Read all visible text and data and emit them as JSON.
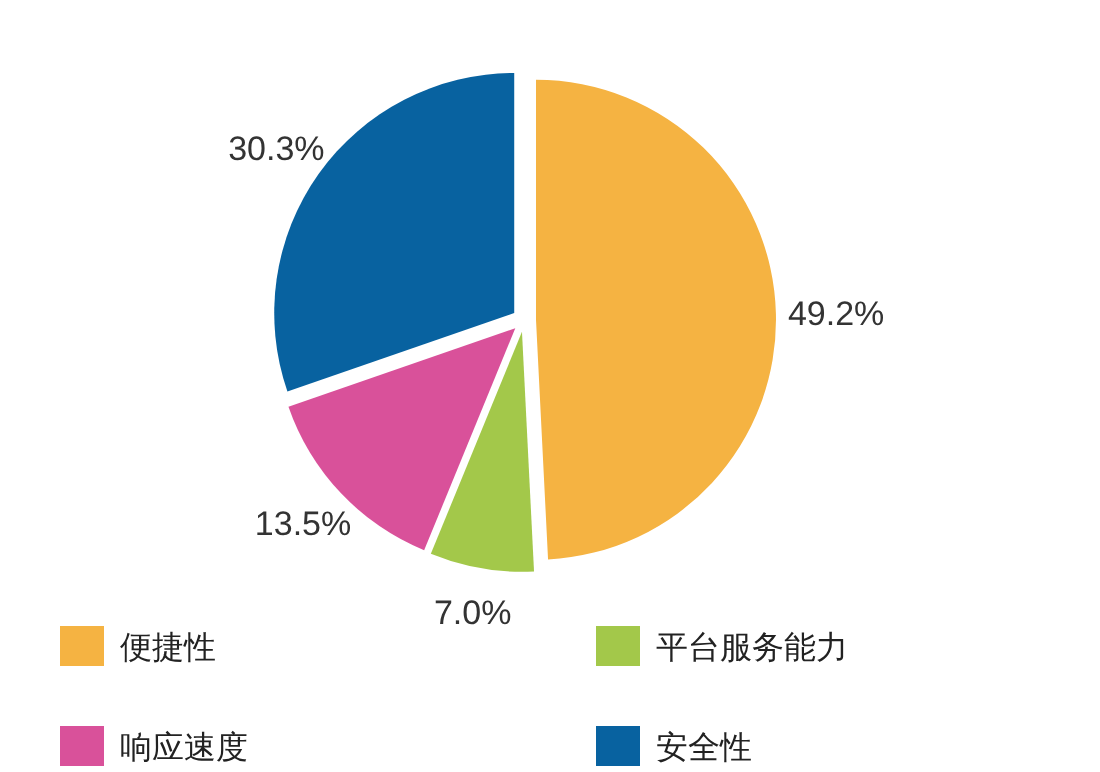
{
  "chart_data": {
    "type": "pie",
    "categories": [
      "便捷性",
      "平台服务能力",
      "响应速度",
      "安全性"
    ],
    "values": [
      49.2,
      7.0,
      13.5,
      30.3
    ],
    "colors": [
      "#f5b342",
      "#a3c84a",
      "#d9519a",
      "#0862a0"
    ],
    "value_labels": [
      "49.2%",
      "7.0%",
      "13.5%",
      "30.3%"
    ],
    "legend": "bottom"
  }
}
